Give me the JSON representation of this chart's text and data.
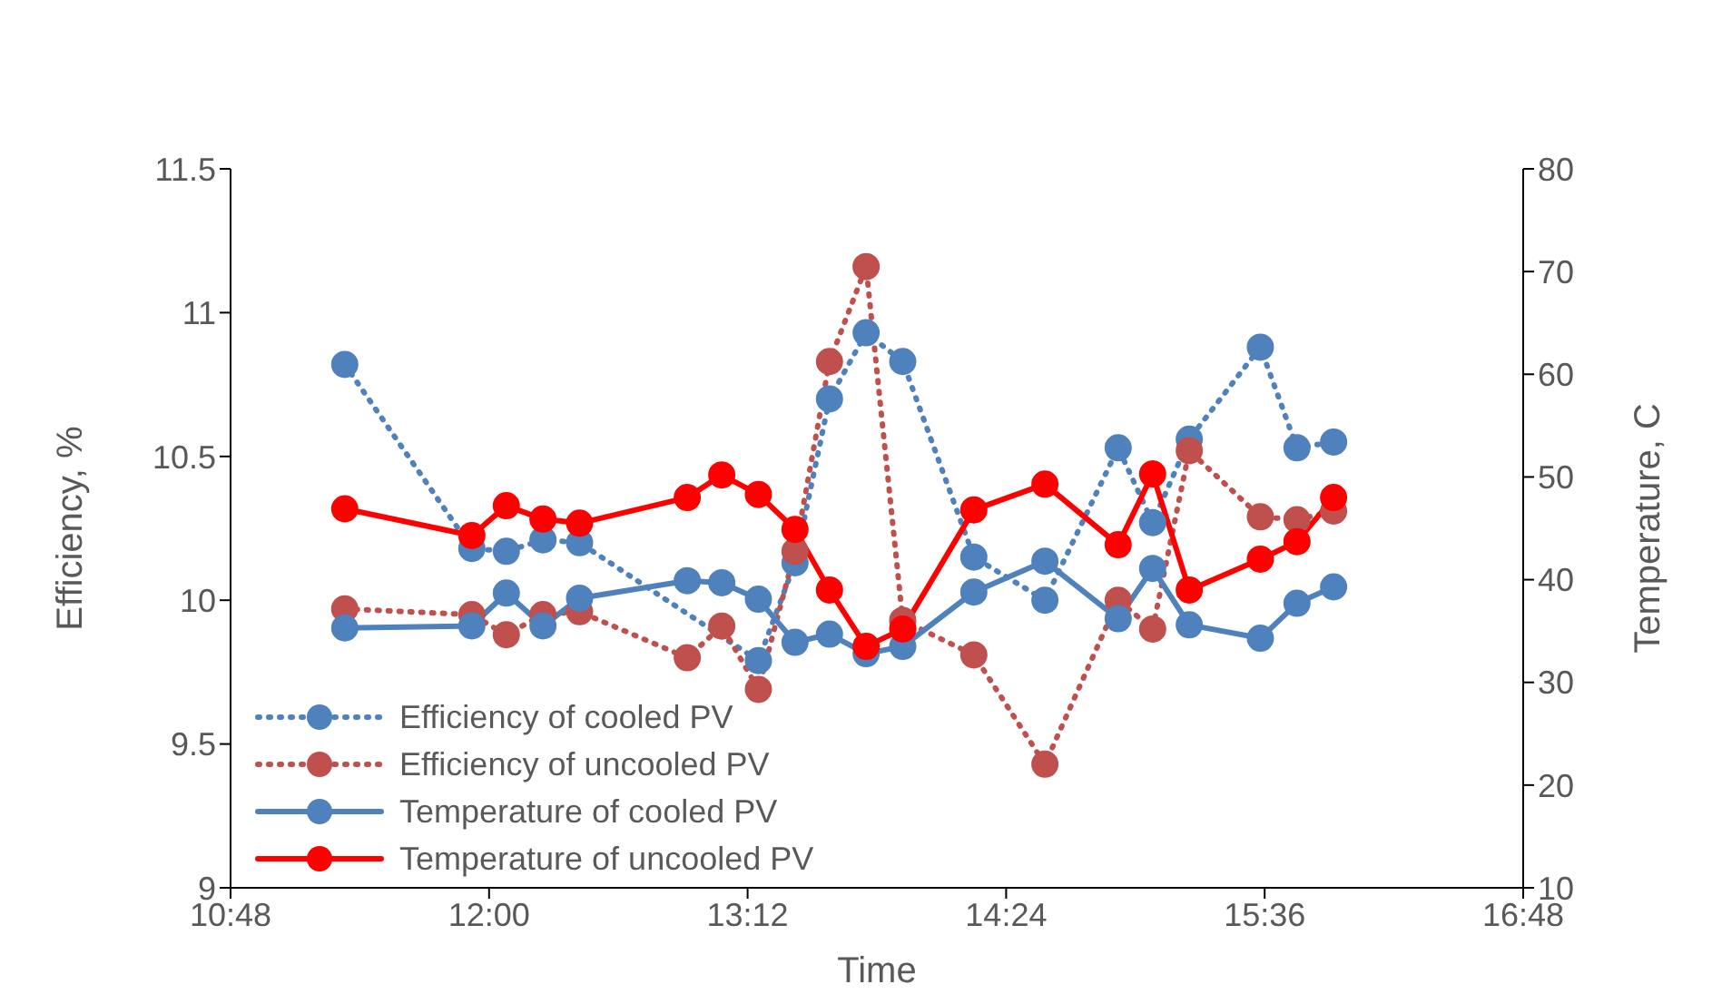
{
  "chart_data": {
    "type": "line",
    "xlabel": "Time",
    "ylabel": "Efficiency, %",
    "y2label": "Temperature, C",
    "x": [
      11.33,
      11.92,
      12.08,
      12.25,
      12.42,
      12.92,
      13.08,
      13.25,
      13.42,
      13.58,
      13.75,
      13.92,
      14.25,
      14.58,
      14.92,
      15.08,
      15.25,
      15.58,
      15.75,
      15.92
    ],
    "xlim": [
      10.8,
      16.8
    ],
    "xticks": [
      {
        "value": 10.8,
        "label": "10:48"
      },
      {
        "value": 12,
        "label": "12:00"
      },
      {
        "value": 13.2,
        "label": "13:12"
      },
      {
        "value": 14.4,
        "label": "14:24"
      },
      {
        "value": 15.6,
        "label": "15:36"
      },
      {
        "value": 16.8,
        "label": "16:48"
      }
    ],
    "ylim": [
      9,
      11.5
    ],
    "yticks": [
      9,
      9.5,
      10,
      10.5,
      11,
      11.5
    ],
    "y2lim": [
      10,
      80
    ],
    "y2ticks": [
      10,
      20,
      30,
      40,
      50,
      60,
      70,
      80
    ],
    "grid": false,
    "legend": "bottom left",
    "marker": "circle",
    "series": [
      {
        "name": "Efficiency of cooled PV",
        "color": "#4f81bd",
        "line_style": "dotted",
        "values": [
          10.82,
          10.18,
          10.17,
          10.21,
          10.2,
          null,
          null,
          9.79,
          10.13,
          10.7,
          10.93,
          10.83,
          10.15,
          10.0,
          10.53,
          10.27,
          10.56,
          10.88,
          10.53,
          10.55
        ]
      },
      {
        "name": "Efficiency of uncooled PV",
        "color": "#c0504d",
        "line_style": "dotted",
        "values": [
          9.97,
          9.95,
          9.88,
          9.95,
          9.96,
          9.8,
          9.91,
          9.69,
          10.17,
          10.83,
          11.16,
          9.93,
          9.81,
          9.43,
          10.0,
          9.9,
          10.52,
          10.29,
          10.28,
          10.31
        ]
      },
      {
        "name": "Temperature of cooled PV",
        "color": "#4f81bd",
        "line_style": "solid",
        "axis": "y2",
        "values": [
          35.3,
          35.5,
          38.7,
          35.5,
          38.2,
          39.9,
          39.7,
          38.1,
          33.9,
          34.7,
          32.8,
          33.5,
          38.8,
          41.8,
          36.2,
          41.1,
          35.6,
          34.3,
          37.7,
          39.3
        ]
      },
      {
        "name": "Temperature of uncooled PV",
        "color": "#ff0000",
        "line_style": "solid",
        "axis": "y2",
        "values": [
          46.9,
          44.3,
          47.2,
          45.9,
          45.5,
          48.0,
          50.2,
          48.3,
          44.9,
          39.0,
          33.5,
          35.2,
          46.8,
          49.3,
          43.4,
          50.3,
          39.0,
          42.0,
          43.7,
          48.0
        ]
      }
    ]
  }
}
